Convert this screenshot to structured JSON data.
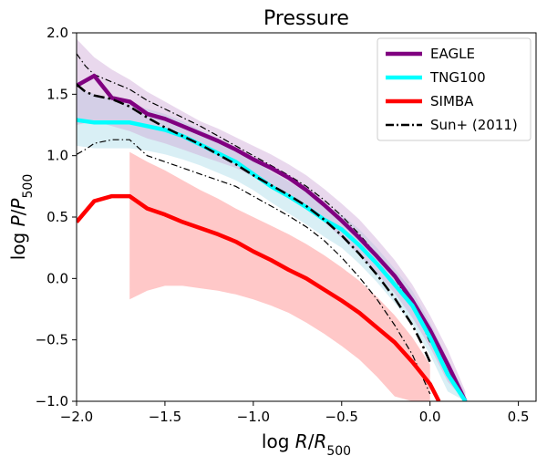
{
  "chart_data": {
    "type": "line",
    "title": "Pressure",
    "xlabel": {
      "prefix": "log ",
      "var": "R",
      "slash": "/",
      "var2": "R",
      "sub": "500"
    },
    "ylabel": {
      "prefix": "log ",
      "var": "P",
      "slash": "/",
      "var2": "P",
      "sub": "500"
    },
    "xlim": [
      -2.0,
      0.6
    ],
    "ylim": [
      -1.0,
      2.0
    ],
    "xticks": [
      -2.0,
      -1.5,
      -1.0,
      -0.5,
      0.0,
      0.5
    ],
    "xtick_labels": [
      "−2.0",
      "−1.5",
      "−1.0",
      "−0.5",
      "0.0",
      "0.5"
    ],
    "yticks": [
      -1.0,
      -0.5,
      0.0,
      0.5,
      1.0,
      1.5,
      2.0
    ],
    "ytick_labels": [
      "−1.0",
      "−0.5",
      "0.0",
      "0.5",
      "1.0",
      "1.5",
      "2.0"
    ],
    "grid": false,
    "legend_position": "top-right",
    "series": [
      {
        "name": "EAGLE",
        "color": "#800080",
        "band_color": "#cfa8d8",
        "style": "solid",
        "x": [
          -2.0,
          -1.9,
          -1.8,
          -1.7,
          -1.6,
          -1.5,
          -1.4,
          -1.3,
          -1.2,
          -1.1,
          -1.0,
          -0.9,
          -0.8,
          -0.7,
          -0.6,
          -0.5,
          -0.4,
          -0.3,
          -0.2,
          -0.1,
          0.0,
          0.1,
          0.2
        ],
        "y": [
          1.57,
          1.65,
          1.47,
          1.44,
          1.34,
          1.3,
          1.24,
          1.18,
          1.12,
          1.05,
          0.97,
          0.9,
          0.82,
          0.72,
          0.6,
          0.47,
          0.33,
          0.18,
          0.02,
          -0.18,
          -0.42,
          -0.7,
          -1.0
        ],
        "band_upper": [
          1.95,
          1.8,
          1.7,
          1.62,
          1.52,
          1.44,
          1.36,
          1.28,
          1.22,
          1.15,
          1.08,
          1.01,
          0.93,
          0.84,
          0.73,
          0.61,
          0.48,
          0.32,
          0.15,
          -0.05,
          -0.3,
          -0.58,
          -0.92
        ],
        "band_lower": [
          1.25,
          1.28,
          1.24,
          1.2,
          1.14,
          1.1,
          1.05,
          1.0,
          0.95,
          0.9,
          0.83,
          0.76,
          0.68,
          0.58,
          0.46,
          0.33,
          0.19,
          0.04,
          -0.12,
          -0.32,
          -0.56,
          -0.84,
          -1.0
        ]
      },
      {
        "name": "TNG100",
        "color": "#00ffff",
        "band_color": "#bfe4ee",
        "style": "solid",
        "x": [
          -2.0,
          -1.9,
          -1.8,
          -1.7,
          -1.6,
          -1.5,
          -1.4,
          -1.3,
          -1.2,
          -1.1,
          -1.0,
          -0.9,
          -0.8,
          -0.7,
          -0.6,
          -0.5,
          -0.4,
          -0.3,
          -0.2,
          -0.1,
          0.0,
          0.1,
          0.2
        ],
        "y": [
          1.29,
          1.27,
          1.27,
          1.27,
          1.24,
          1.21,
          1.16,
          1.09,
          1.02,
          0.95,
          0.85,
          0.75,
          0.67,
          0.58,
          0.48,
          0.4,
          0.27,
          0.12,
          -0.05,
          -0.22,
          -0.48,
          -0.78,
          -1.0
        ],
        "band_upper": [
          1.55,
          1.5,
          1.46,
          1.43,
          1.38,
          1.34,
          1.28,
          1.21,
          1.14,
          1.07,
          0.97,
          0.87,
          0.79,
          0.7,
          0.6,
          0.52,
          0.4,
          0.25,
          0.08,
          -0.1,
          -0.36,
          -0.66,
          -0.94
        ],
        "band_lower": [
          1.08,
          1.06,
          1.06,
          1.06,
          1.04,
          1.01,
          0.97,
          0.92,
          0.86,
          0.8,
          0.72,
          0.62,
          0.53,
          0.44,
          0.34,
          0.25,
          0.12,
          -0.03,
          -0.2,
          -0.38,
          -0.62,
          -0.92,
          -1.0
        ]
      },
      {
        "name": "SIMBA",
        "color": "#ff0000",
        "band_color": "#ffc2c2",
        "style": "solid",
        "x": [
          -2.0,
          -1.9,
          -1.8,
          -1.7,
          -1.6,
          -1.5,
          -1.4,
          -1.3,
          -1.2,
          -1.1,
          -1.0,
          -0.9,
          -0.8,
          -0.7,
          -0.6,
          -0.5,
          -0.4,
          -0.3,
          -0.2,
          -0.1,
          0.0,
          0.05
        ],
        "y": [
          0.46,
          0.63,
          0.67,
          0.67,
          0.57,
          0.52,
          0.46,
          0.41,
          0.36,
          0.3,
          0.22,
          0.15,
          0.07,
          0.0,
          -0.09,
          -0.18,
          -0.28,
          -0.4,
          -0.52,
          -0.68,
          -0.86,
          -1.0
        ],
        "band_x": [
          -1.7,
          -1.6,
          -1.5,
          -1.4,
          -1.3,
          -1.2,
          -1.1,
          -1.0,
          -0.9,
          -0.8,
          -0.7,
          -0.6,
          -0.5,
          -0.4,
          -0.3,
          -0.2,
          -0.1,
          0.0
        ],
        "band_upper": [
          1.03,
          0.95,
          0.88,
          0.8,
          0.72,
          0.65,
          0.57,
          0.5,
          0.43,
          0.36,
          0.28,
          0.19,
          0.09,
          -0.02,
          -0.15,
          -0.3,
          -0.48,
          -0.7
        ],
        "band_lower": [
          -0.17,
          -0.1,
          -0.06,
          -0.06,
          -0.08,
          -0.1,
          -0.13,
          -0.17,
          -0.22,
          -0.28,
          -0.36,
          -0.45,
          -0.55,
          -0.66,
          -0.8,
          -0.96,
          -1.0,
          -1.0
        ]
      },
      {
        "name": "Sun+ (2011)",
        "color": "#000000",
        "style": "dashdot",
        "x": [
          -2.0,
          -1.95,
          -1.9,
          -1.8,
          -1.7,
          -1.6,
          -1.5,
          -1.4,
          -1.3,
          -1.2,
          -1.1,
          -1.0,
          -0.9,
          -0.8,
          -0.7,
          -0.6,
          -0.5,
          -0.4,
          -0.3,
          -0.2,
          -0.1,
          -0.05,
          0.0
        ],
        "y": [
          1.58,
          1.52,
          1.49,
          1.46,
          1.4,
          1.31,
          1.23,
          1.16,
          1.09,
          1.01,
          0.93,
          0.84,
          0.76,
          0.68,
          0.59,
          0.48,
          0.35,
          0.2,
          0.03,
          -0.16,
          -0.38,
          -0.52,
          -0.68
        ],
        "upper": [
          1.83,
          1.73,
          1.66,
          1.6,
          1.54,
          1.45,
          1.38,
          1.31,
          1.24,
          1.16,
          1.08,
          1.0,
          0.92,
          0.84,
          0.75,
          0.64,
          0.51,
          0.36,
          0.19,
          0.0,
          -0.22,
          -0.36,
          -0.52
        ],
        "lower": [
          1.01,
          1.05,
          1.1,
          1.13,
          1.13,
          1.0,
          0.95,
          0.9,
          0.85,
          0.8,
          0.75,
          0.67,
          0.59,
          0.51,
          0.42,
          0.31,
          0.17,
          0.01,
          -0.17,
          -0.38,
          -0.62,
          -0.78,
          -0.94
        ]
      }
    ]
  }
}
